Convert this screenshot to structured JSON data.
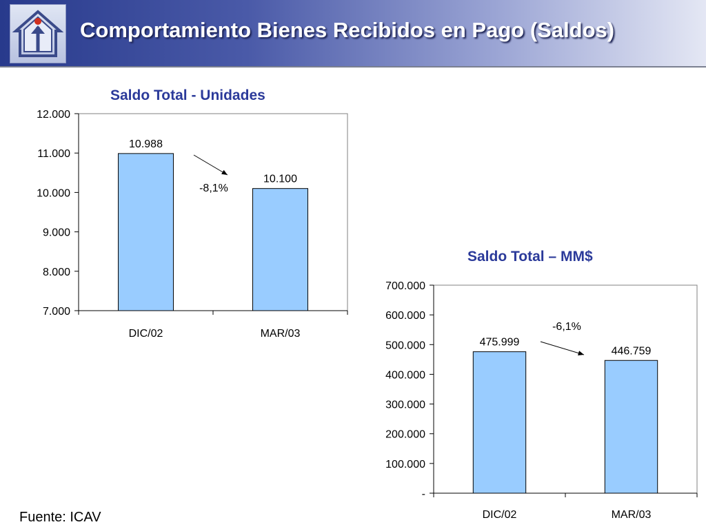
{
  "slide": {
    "title": "Comportamiento Bienes Recibidos en Pago (Saldos)",
    "source": "Fuente: ICAV",
    "header_color": "#283a8c",
    "bar_color": "#99ccff"
  },
  "chart_data": [
    {
      "type": "bar",
      "title": "Saldo Total - Unidades",
      "categories": [
        "DIC/02",
        "MAR/03"
      ],
      "values": [
        10988,
        10100
      ],
      "value_labels": [
        "10.988",
        "10.100"
      ],
      "ylim": [
        7000,
        12000
      ],
      "yticks": [
        7000,
        8000,
        9000,
        10000,
        11000,
        12000
      ],
      "ytick_labels": [
        "7.000",
        "8.000",
        "9.000",
        "10.000",
        "11.000",
        "12.000"
      ],
      "annotation": "-8,1%",
      "xlabel": "",
      "ylabel": "",
      "grid": false
    },
    {
      "type": "bar",
      "title": "Saldo Total – MM$",
      "categories": [
        "DIC/02",
        "MAR/03"
      ],
      "values": [
        475999,
        446759
      ],
      "value_labels": [
        "475.999",
        "446.759"
      ],
      "ylim": [
        0,
        700000
      ],
      "yticks": [
        0,
        100000,
        200000,
        300000,
        400000,
        500000,
        600000,
        700000
      ],
      "ytick_labels": [
        "-",
        "100.000",
        "200.000",
        "300.000",
        "400.000",
        "500.000",
        "600.000",
        "700.000"
      ],
      "annotation": "-6,1%",
      "xlabel": "",
      "ylabel": "",
      "grid": false
    }
  ]
}
